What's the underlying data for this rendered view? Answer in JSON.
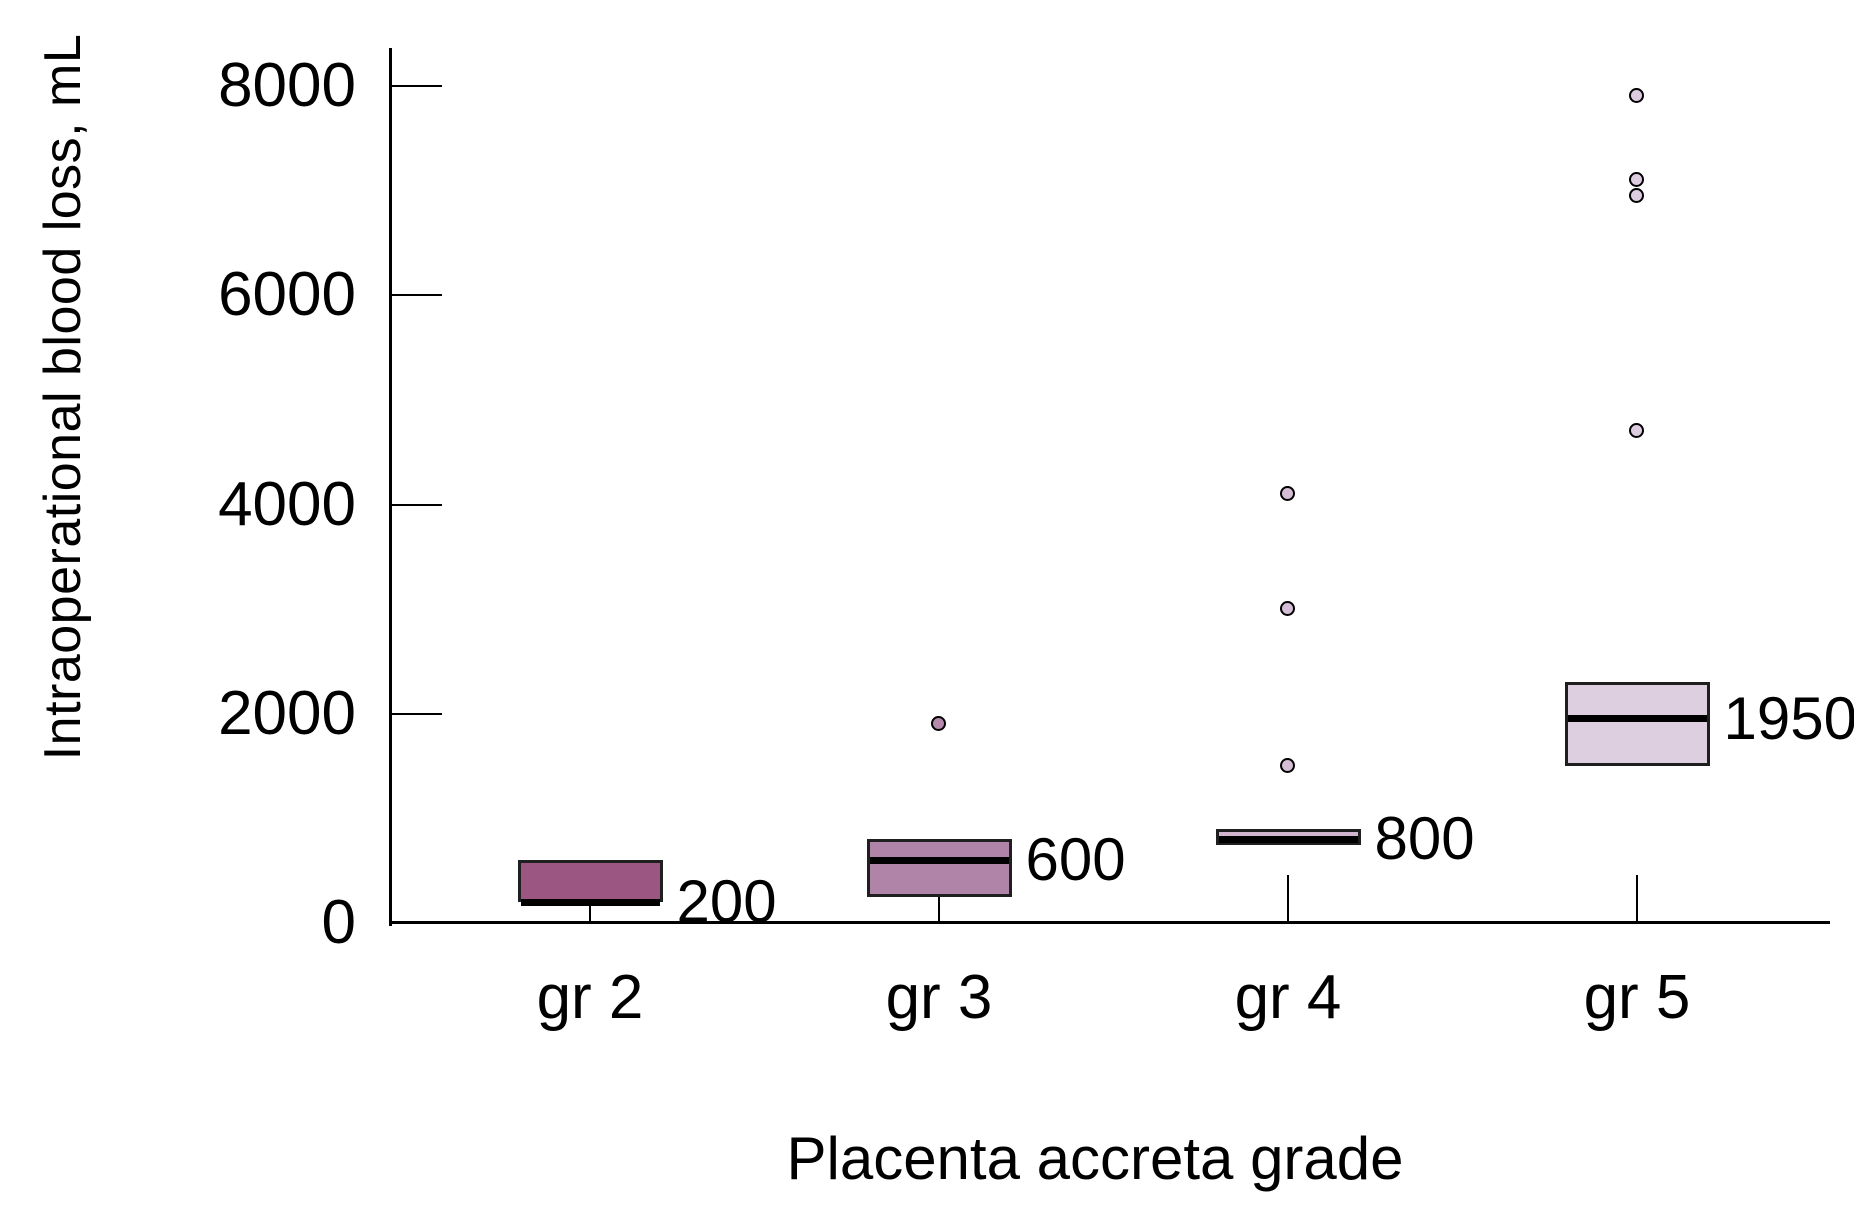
{
  "chart_data": {
    "type": "boxplot",
    "title": "",
    "ylabel": "Intraoperational blood loss, mL",
    "xlabel": "Placenta accreta grade",
    "y_ticks": [
      0,
      2000,
      4000,
      6000,
      8000
    ],
    "ylim": [
      0,
      8400
    ],
    "grid": false,
    "legend": false,
    "categories": [
      "gr 2",
      "gr 3",
      "gr 4",
      "gr 5"
    ],
    "groups": [
      {
        "category": "gr 2",
        "q1": 200,
        "median": 200,
        "q3": 600,
        "median_label": "200",
        "outliers": [],
        "box_color": "#9c5682",
        "point_color": "#9c5682"
      },
      {
        "category": "gr 3",
        "q1": 250,
        "median": 600,
        "q3": 800,
        "median_label": "600",
        "outliers": [
          1900
        ],
        "box_color": "#b084a8",
        "point_color": "#b58aac"
      },
      {
        "category": "gr 4",
        "q1": 750,
        "median": 800,
        "q3": 900,
        "median_label": "800",
        "outliers": [
          4100,
          3000,
          1500
        ],
        "box_color": "#d2b5ce",
        "point_color": "#d6bdd6"
      },
      {
        "category": "gr 5",
        "q1": 1500,
        "median": 1950,
        "q3": 2300,
        "median_label": "1950",
        "outliers": [
          7900,
          7100,
          6950,
          4700
        ],
        "box_color": "#ddcfdf",
        "point_color": "#ddcce0"
      }
    ],
    "colors": {
      "axis": "#000000",
      "median_line": "#000000",
      "text": "#000000",
      "background": "#ffffff"
    }
  }
}
